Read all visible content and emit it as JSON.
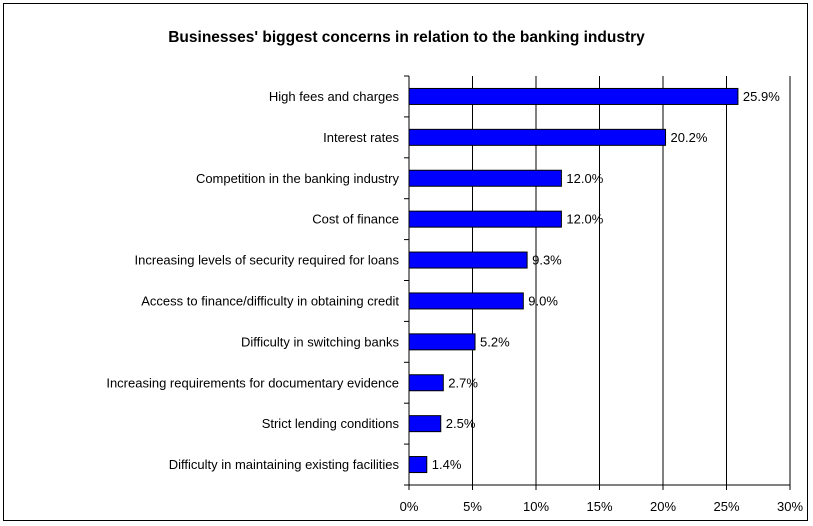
{
  "chart_data": {
    "type": "bar",
    "orientation": "horizontal",
    "title": "Businesses' biggest concerns in relation to the banking industry",
    "categories": [
      "High fees and charges",
      "Interest rates",
      "Competition in the banking industry",
      "Cost of finance",
      "Increasing levels of security required for loans",
      "Access to finance/difficulty in obtaining credit",
      "Difficulty in switching banks",
      "Increasing requirements for documentary evidence",
      "Strict lending conditions",
      "Difficulty in maintaining existing facilities"
    ],
    "values": [
      25.9,
      20.2,
      12.0,
      12.0,
      9.3,
      9.0,
      5.2,
      2.7,
      2.5,
      1.4
    ],
    "value_labels": [
      "25.9%",
      "20.2%",
      "12.0%",
      "12.0%",
      "9.3%",
      "9.0%",
      "5.2%",
      "2.7%",
      "2.5%",
      "1.4%"
    ],
    "xlim": [
      0,
      30
    ],
    "xticks": [
      0,
      5,
      10,
      15,
      20,
      25,
      30
    ],
    "xtick_labels": [
      "0%",
      "5%",
      "10%",
      "15%",
      "20%",
      "25%",
      "30%"
    ],
    "grid": "vertical",
    "legend": "none",
    "bar_color": "#0000FF"
  }
}
